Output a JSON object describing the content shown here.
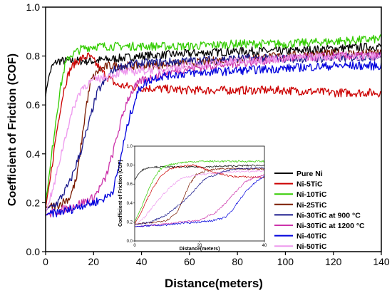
{
  "chart_data": {
    "type": "line",
    "title": "",
    "xlabel": "Distance(meters)",
    "ylabel": "Coefficient of Friction (COF)",
    "xlim": [
      0,
      140
    ],
    "ylim": [
      0.0,
      1.0
    ],
    "x_ticks": [
      "0",
      "20",
      "40",
      "60",
      "80",
      "100",
      "120",
      "140"
    ],
    "y_ticks": [
      "0.0",
      "0.2",
      "0.4",
      "0.6",
      "0.8",
      "1.0"
    ],
    "grid": false,
    "legend_position": "bottom-right",
    "series": [
      {
        "name": "Pure Ni",
        "color": "#000000",
        "points": [
          [
            0,
            0.64
          ],
          [
            1,
            0.7
          ],
          [
            2,
            0.74
          ],
          [
            3,
            0.76
          ],
          [
            5,
            0.78
          ],
          [
            10,
            0.78
          ],
          [
            20,
            0.78
          ],
          [
            30,
            0.79
          ],
          [
            40,
            0.8
          ],
          [
            60,
            0.81
          ],
          [
            80,
            0.82
          ],
          [
            100,
            0.82
          ],
          [
            120,
            0.83
          ],
          [
            140,
            0.84
          ]
        ]
      },
      {
        "name": "Ni-5TiC",
        "color": "#cc0000",
        "points": [
          [
            0,
            0.18
          ],
          [
            2,
            0.3
          ],
          [
            4,
            0.45
          ],
          [
            6,
            0.58
          ],
          [
            8,
            0.68
          ],
          [
            10,
            0.74
          ],
          [
            12,
            0.77
          ],
          [
            15,
            0.79
          ],
          [
            18,
            0.8
          ],
          [
            20,
            0.78
          ],
          [
            25,
            0.72
          ],
          [
            30,
            0.68
          ],
          [
            40,
            0.67
          ],
          [
            60,
            0.66
          ],
          [
            80,
            0.66
          ],
          [
            100,
            0.66
          ],
          [
            120,
            0.65
          ],
          [
            140,
            0.65
          ]
        ]
      },
      {
        "name": "Ni-10TiC",
        "color": "#33cc00",
        "points": [
          [
            0,
            0.2
          ],
          [
            2,
            0.35
          ],
          [
            4,
            0.52
          ],
          [
            6,
            0.66
          ],
          [
            8,
            0.76
          ],
          [
            10,
            0.8
          ],
          [
            15,
            0.83
          ],
          [
            20,
            0.84
          ],
          [
            40,
            0.84
          ],
          [
            60,
            0.84
          ],
          [
            80,
            0.85
          ],
          [
            100,
            0.85
          ],
          [
            120,
            0.86
          ],
          [
            140,
            0.87
          ]
        ]
      },
      {
        "name": "Ni-25TiC",
        "color": "#7a1a00",
        "points": [
          [
            0,
            0.18
          ],
          [
            5,
            0.19
          ],
          [
            10,
            0.22
          ],
          [
            13,
            0.3
          ],
          [
            15,
            0.45
          ],
          [
            17,
            0.6
          ],
          [
            19,
            0.7
          ],
          [
            22,
            0.74
          ],
          [
            26,
            0.76
          ],
          [
            30,
            0.76
          ],
          [
            40,
            0.76
          ],
          [
            60,
            0.77
          ],
          [
            80,
            0.79
          ],
          [
            100,
            0.8
          ],
          [
            120,
            0.81
          ],
          [
            140,
            0.81
          ]
        ]
      },
      {
        "name": "Ni-30TiC at 900 °C",
        "color": "#1a1a8c",
        "points": [
          [
            0,
            0.17
          ],
          [
            5,
            0.2
          ],
          [
            10,
            0.28
          ],
          [
            15,
            0.42
          ],
          [
            18,
            0.52
          ],
          [
            20,
            0.6
          ],
          [
            22,
            0.66
          ],
          [
            25,
            0.7
          ],
          [
            28,
            0.74
          ],
          [
            32,
            0.76
          ],
          [
            40,
            0.77
          ],
          [
            60,
            0.78
          ],
          [
            80,
            0.79
          ],
          [
            100,
            0.79
          ],
          [
            120,
            0.79
          ],
          [
            140,
            0.8
          ]
        ]
      },
      {
        "name": "Ni-30TiC at 1200 °C",
        "color": "#cc33aa",
        "points": [
          [
            0,
            0.15
          ],
          [
            10,
            0.18
          ],
          [
            20,
            0.22
          ],
          [
            25,
            0.3
          ],
          [
            28,
            0.4
          ],
          [
            30,
            0.48
          ],
          [
            32,
            0.55
          ],
          [
            34,
            0.62
          ],
          [
            37,
            0.67
          ],
          [
            40,
            0.7
          ],
          [
            50,
            0.73
          ],
          [
            60,
            0.75
          ],
          [
            80,
            0.77
          ],
          [
            100,
            0.79
          ],
          [
            120,
            0.8
          ],
          [
            140,
            0.8
          ]
        ]
      },
      {
        "name": "Ni-40TiC",
        "color": "#0000dd",
        "points": [
          [
            0,
            0.15
          ],
          [
            5,
            0.16
          ],
          [
            10,
            0.17
          ],
          [
            15,
            0.19
          ],
          [
            20,
            0.2
          ],
          [
            25,
            0.22
          ],
          [
            28,
            0.25
          ],
          [
            30,
            0.32
          ],
          [
            32,
            0.42
          ],
          [
            35,
            0.55
          ],
          [
            38,
            0.64
          ],
          [
            40,
            0.68
          ],
          [
            45,
            0.71
          ],
          [
            50,
            0.72
          ],
          [
            60,
            0.73
          ],
          [
            80,
            0.74
          ],
          [
            100,
            0.75
          ],
          [
            120,
            0.76
          ],
          [
            140,
            0.76
          ]
        ]
      },
      {
        "name": "Ni-50TiC",
        "color": "#ee99ee",
        "points": [
          [
            0,
            0.16
          ],
          [
            3,
            0.25
          ],
          [
            6,
            0.38
          ],
          [
            9,
            0.5
          ],
          [
            12,
            0.6
          ],
          [
            15,
            0.67
          ],
          [
            20,
            0.7
          ],
          [
            30,
            0.73
          ],
          [
            40,
            0.74
          ],
          [
            60,
            0.76
          ],
          [
            80,
            0.78
          ],
          [
            100,
            0.79
          ],
          [
            120,
            0.8
          ],
          [
            140,
            0.8
          ]
        ]
      }
    ],
    "inset": {
      "xlabel": "Distance(meters)",
      "ylabel": "Coefficient of Friction (COF)",
      "xlim": [
        0,
        40
      ],
      "ylim": [
        0.0,
        1.0
      ],
      "x_ticks": [
        "0",
        "20",
        "40"
      ],
      "y_ticks": [
        "0.0",
        "0.2",
        "0.4",
        "0.6",
        "0.8",
        "1.0"
      ]
    }
  }
}
